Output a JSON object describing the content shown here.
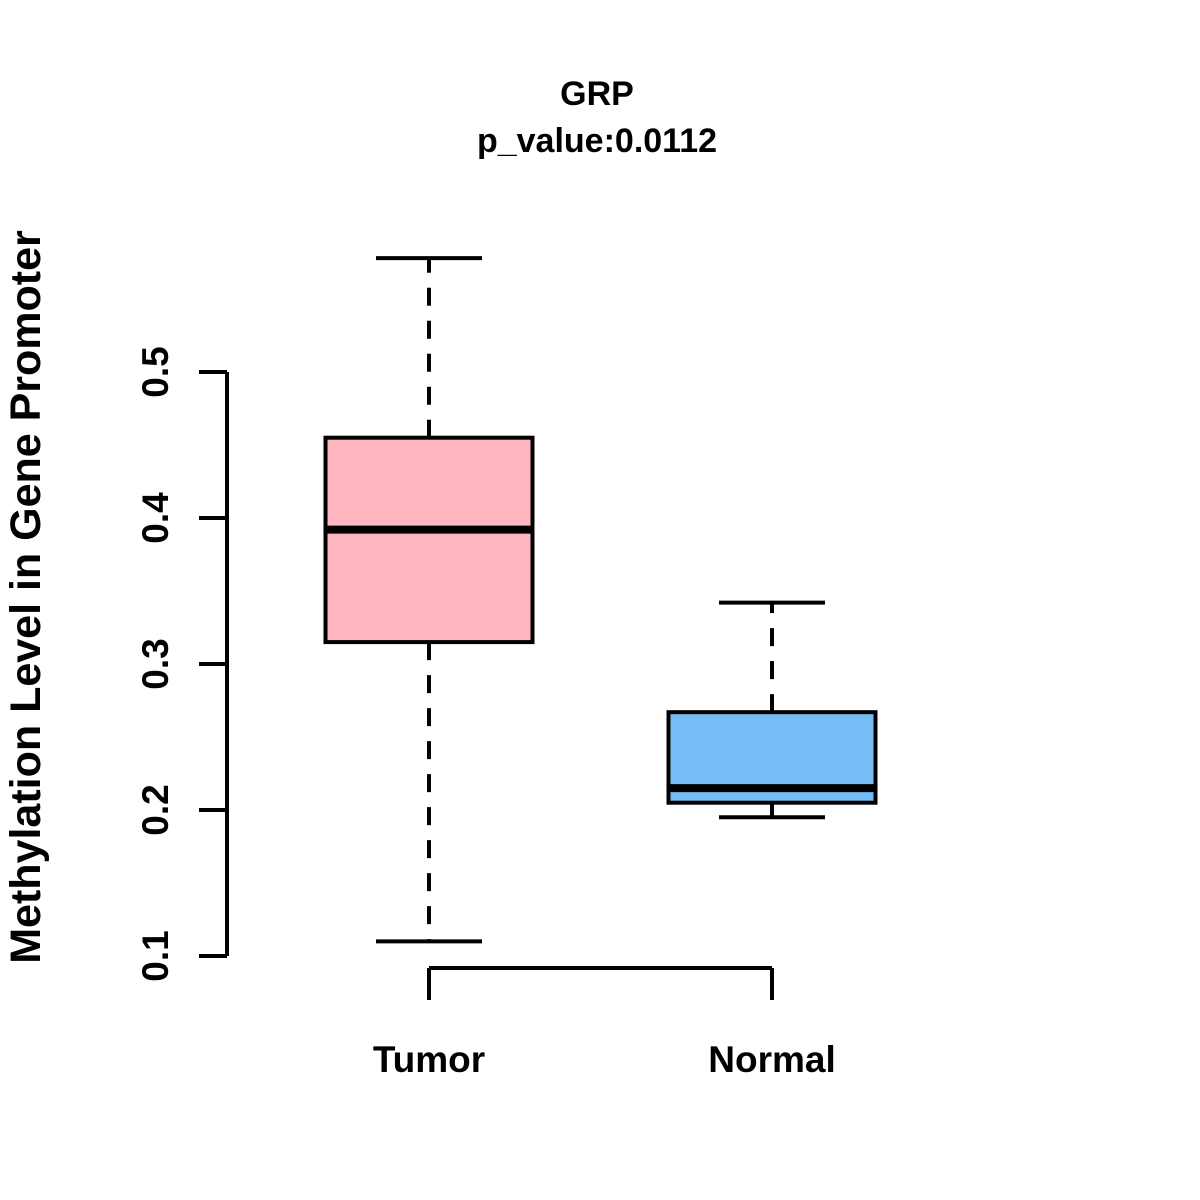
{
  "chart_data": {
    "type": "boxplot",
    "title": "GRP",
    "subtitle": "p_value:0.0112",
    "p_value": "0.0112",
    "ylabel": "Methylation Level in Gene Promoter",
    "xlabel": "",
    "ylim": [
      0.1,
      0.5
    ],
    "yticks": [
      0.1,
      0.2,
      0.3,
      0.4,
      0.5
    ],
    "categories": [
      "Tumor",
      "Normal"
    ],
    "grid": false,
    "legend": null,
    "groups": [
      {
        "label": "Tumor",
        "color": "#FFB6C1",
        "whisker_low": 0.11,
        "q1": 0.315,
        "median": 0.392,
        "q3": 0.455,
        "whisker_high": 0.578
      },
      {
        "label": "Normal",
        "color": "#74BEF5",
        "whisker_low": 0.195,
        "q1": 0.205,
        "median": 0.215,
        "q3": 0.267,
        "whisker_high": 0.342
      }
    ],
    "colors": {
      "stroke": "#000000",
      "background": "#FFFFFF",
      "tumor_fill": "#FFB6C1",
      "normal_fill": "#74BEF5"
    }
  }
}
